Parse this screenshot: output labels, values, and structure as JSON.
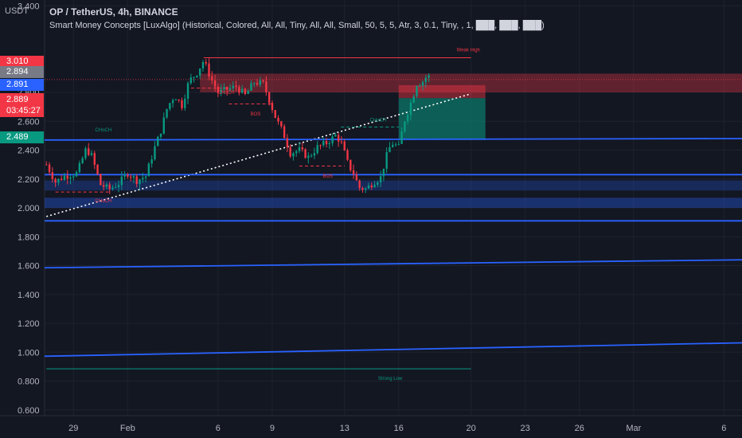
{
  "header": {
    "title": "OP / TetherUS, 4h, BINANCE",
    "indicator": "Smart Money Concepts [LuxAlgo] (Historical, Colored, All, All, Tiny, All, All, Small, 50, 5, 5, Atr, 3, 0.1, Tiny, , 1, ███, ███, ███)"
  },
  "axis_unit": "USDT",
  "price_badges": [
    {
      "label": "3.010",
      "value": 3.01,
      "color": "#f23645"
    },
    {
      "label": "2.894",
      "value": 2.894,
      "color": "#787b86"
    },
    {
      "label": "2.891",
      "value": 2.891,
      "color": "#2962ff"
    },
    {
      "label": "2.489",
      "value": 2.489,
      "color": "#089981"
    }
  ],
  "current_price": {
    "label": "2.889",
    "countdown": "03:45:27",
    "value": 2.889
  },
  "chart_data": {
    "type": "candlestick",
    "symbol": "OP / TetherUS",
    "interval": "4h",
    "exchange": "BINANCE",
    "ylim": [
      0.56,
      3.44
    ],
    "y_ticks": [
      3.4,
      2.8,
      2.6,
      2.4,
      2.2,
      2.0,
      1.8,
      1.6,
      1.4,
      1.2,
      1.0,
      0.8,
      0.6
    ],
    "y_tick_labels": [
      "3.400",
      "2.800",
      "2.600",
      "2.400",
      "2.200",
      "2.000",
      "1.800",
      "1.600",
      "1.400",
      "1.200",
      "1.000",
      "0.800",
      "0.600"
    ],
    "x_ticks": [
      {
        "label": "29",
        "day": 29
      },
      {
        "label": "Feb",
        "day": 32
      },
      {
        "label": "6",
        "day": 37
      },
      {
        "label": "9",
        "day": 40
      },
      {
        "label": "13",
        "day": 44
      },
      {
        "label": "16",
        "day": 47
      },
      {
        "label": "20",
        "day": 51
      },
      {
        "label": "23",
        "day": 54
      },
      {
        "label": "26",
        "day": 57
      },
      {
        "label": "Mar",
        "day": 60
      },
      {
        "label": "6",
        "day": 65
      }
    ],
    "x_range": [
      27.4,
      66.0
    ],
    "path": [
      [
        27.5,
        2.3
      ],
      [
        28.0,
        2.18
      ],
      [
        28.5,
        2.22
      ],
      [
        29.2,
        2.24
      ],
      [
        29.7,
        2.41
      ],
      [
        30.0,
        2.36
      ],
      [
        30.5,
        2.16
      ],
      [
        31.0,
        2.13
      ],
      [
        31.5,
        2.17
      ],
      [
        32.0,
        2.24
      ],
      [
        32.5,
        2.19
      ],
      [
        33.0,
        2.22
      ],
      [
        33.5,
        2.42
      ],
      [
        33.8,
        2.52
      ],
      [
        34.2,
        2.7
      ],
      [
        34.6,
        2.78
      ],
      [
        35.0,
        2.71
      ],
      [
        35.4,
        2.88
      ],
      [
        35.8,
        2.93
      ],
      [
        36.2,
        3.02
      ],
      [
        36.6,
        2.9
      ],
      [
        37.0,
        2.8
      ],
      [
        37.5,
        2.82
      ],
      [
        38.0,
        2.84
      ],
      [
        38.5,
        2.78
      ],
      [
        39.0,
        2.87
      ],
      [
        39.5,
        2.86
      ],
      [
        39.8,
        2.76
      ],
      [
        40.2,
        2.62
      ],
      [
        40.6,
        2.52
      ],
      [
        41.0,
        2.38
      ],
      [
        41.5,
        2.4
      ],
      [
        42.0,
        2.35
      ],
      [
        42.5,
        2.42
      ],
      [
        43.0,
        2.45
      ],
      [
        43.5,
        2.5
      ],
      [
        43.8,
        2.46
      ],
      [
        44.2,
        2.3
      ],
      [
        44.5,
        2.24
      ],
      [
        44.8,
        2.14
      ],
      [
        45.2,
        2.13
      ],
      [
        45.6,
        2.18
      ],
      [
        46.0,
        2.21
      ],
      [
        46.3,
        2.35
      ],
      [
        46.6,
        2.45
      ],
      [
        47.0,
        2.42
      ],
      [
        47.3,
        2.6
      ],
      [
        47.6,
        2.7
      ],
      [
        48.0,
        2.86
      ],
      [
        48.3,
        2.87
      ],
      [
        48.6,
        2.92
      ],
      [
        48.8,
        2.89
      ]
    ],
    "trendlines": [
      {
        "name": "rising-support-white",
        "from": [
          27.5,
          1.94
        ],
        "to": [
          51.0,
          2.79
        ],
        "color": "#ffffff",
        "dotted": true
      },
      {
        "name": "blue-line-2480",
        "from": [
          27.4,
          2.47
        ],
        "to": [
          66.0,
          2.48
        ],
        "color": "#2962ff"
      },
      {
        "name": "blue-line-2230",
        "from": [
          27.4,
          2.23
        ],
        "to": [
          66.0,
          2.23
        ],
        "color": "#2962ff"
      },
      {
        "name": "blue-line-1920",
        "from": [
          27.4,
          1.91
        ],
        "to": [
          66.0,
          1.91
        ],
        "color": "#2962ff"
      },
      {
        "name": "blue-line-1590",
        "from": [
          27.4,
          1.585
        ],
        "to": [
          66.0,
          1.64
        ],
        "color": "#2962ff"
      },
      {
        "name": "blue-line-0975",
        "from": [
          27.4,
          0.972
        ],
        "to": [
          66.0,
          1.065
        ],
        "color": "#2962ff"
      }
    ],
    "levels": [
      {
        "name": "weak-high",
        "label": "Weak High",
        "value": 3.04,
        "x1": 36.2,
        "x2": 51.0,
        "color": "#f23645"
      },
      {
        "name": "strong-low",
        "label": "Strong Low",
        "value": 0.885,
        "x1": 27.5,
        "x2": 51.0,
        "color": "#089981"
      }
    ],
    "zones": [
      {
        "name": "supply-zone",
        "y1": 2.93,
        "y2": 2.8,
        "x1": 36.0,
        "x2": 66.0,
        "color": "rgba(242,54,69,0.35)"
      },
      {
        "name": "demand-zone-upper",
        "y1": 2.19,
        "y2": 2.12,
        "x1": 27.4,
        "x2": 66.0,
        "color": "rgba(41,98,255,0.25)"
      },
      {
        "name": "demand-zone-lower",
        "y1": 2.07,
        "y2": 2.0,
        "x1": 27.4,
        "x2": 66.0,
        "color": "rgba(41,98,255,0.35)"
      },
      {
        "name": "short-stop-zone",
        "y1": 2.85,
        "y2": 2.76,
        "x1": 47.0,
        "x2": 51.8,
        "color": "rgba(242,54,69,0.45)"
      },
      {
        "name": "short-target-zone",
        "y1": 2.76,
        "y2": 2.47,
        "x1": 47.0,
        "x2": 51.8,
        "color": "rgba(8,153,129,0.55)"
      }
    ],
    "annotations": [
      {
        "text": "CHoCH",
        "x": 30.2,
        "y": 2.53,
        "color": "#089981"
      },
      {
        "text": "CHoCH",
        "x": 30.2,
        "y": 2.04,
        "color": "#f23645"
      },
      {
        "text": "CHoCH",
        "x": 37.0,
        "y": 2.79,
        "color": "#f23645"
      },
      {
        "text": "BOS",
        "x": 38.8,
        "y": 2.64,
        "color": "#f23645"
      },
      {
        "text": "BOS",
        "x": 42.8,
        "y": 2.21,
        "color": "#f23645"
      },
      {
        "text": "CHoCH",
        "x": 45.4,
        "y": 2.6,
        "color": "#089981"
      }
    ],
    "structure_lines": [
      {
        "y": 2.11,
        "x1": 28.0,
        "x2": 31.0,
        "color": "#f23645"
      },
      {
        "y": 2.83,
        "x1": 35.5,
        "x2": 37.6,
        "color": "#f23645"
      },
      {
        "y": 2.72,
        "x1": 37.6,
        "x2": 40.0,
        "color": "#f23645"
      },
      {
        "y": 2.29,
        "x1": 41.5,
        "x2": 44.0,
        "color": "#f23645"
      },
      {
        "y": 2.56,
        "x1": 43.8,
        "x2": 47.0,
        "color": "#089981"
      }
    ],
    "current_price_line": 2.889
  }
}
